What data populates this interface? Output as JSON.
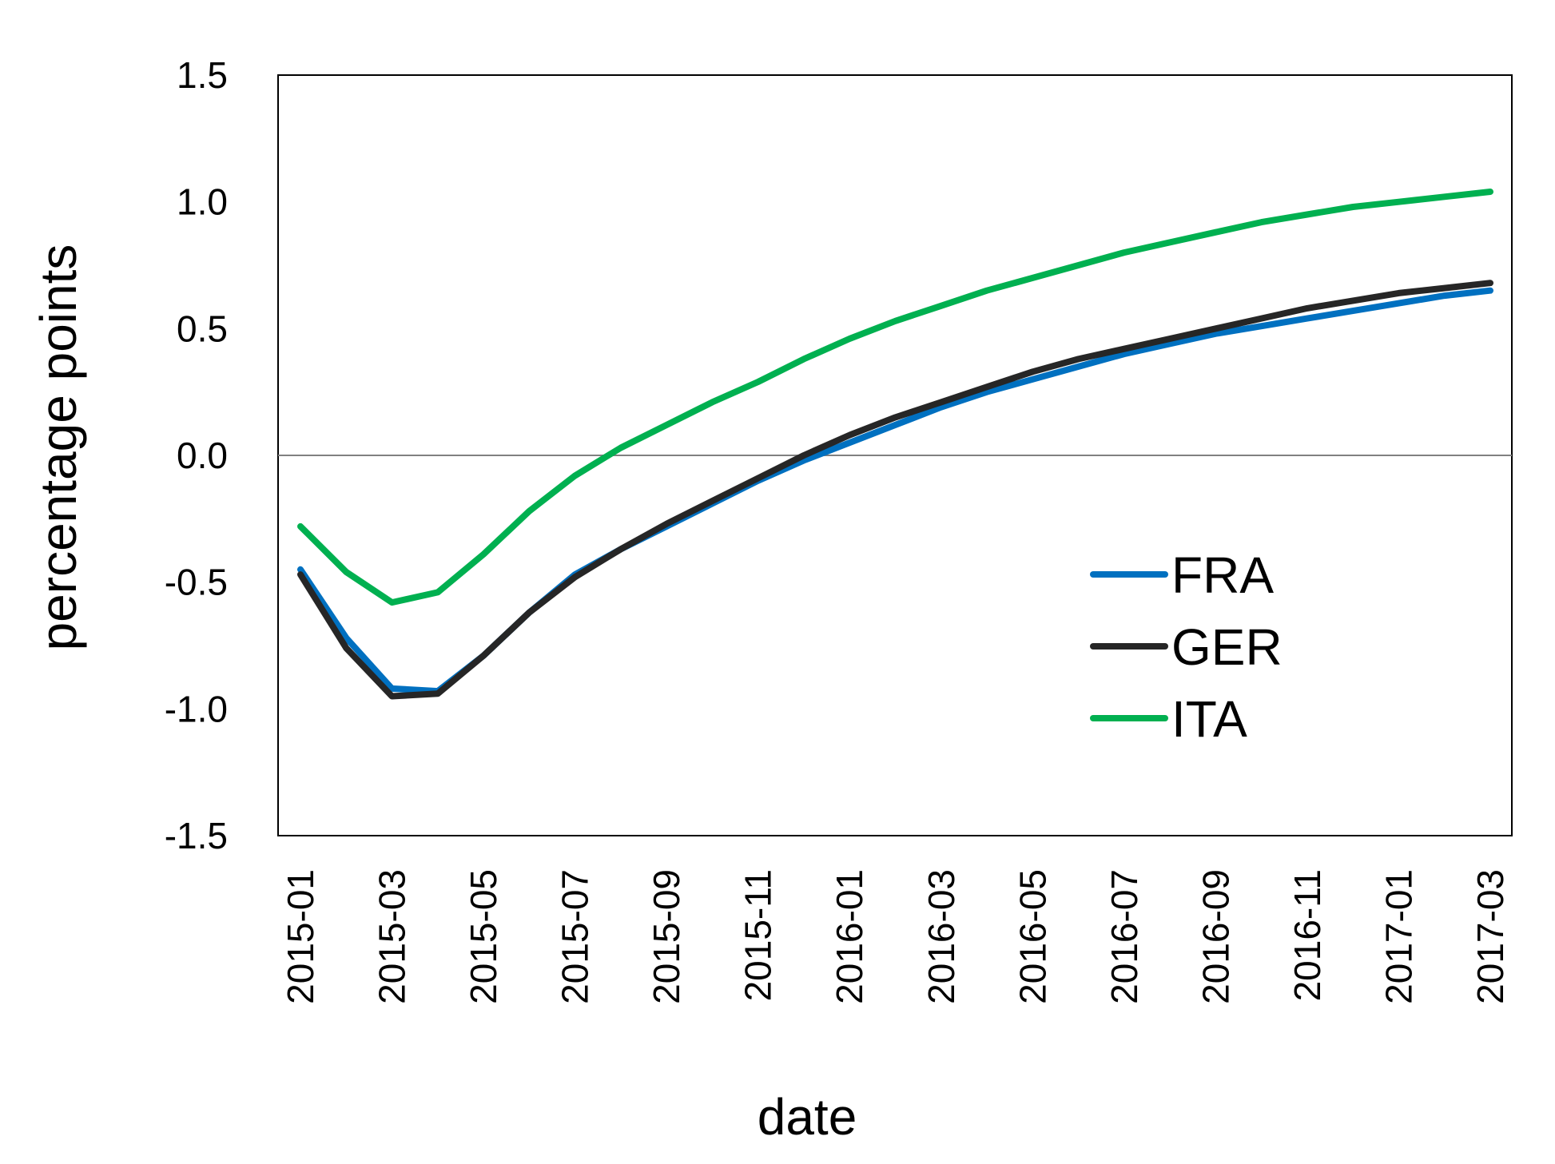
{
  "chart_data": {
    "type": "line",
    "title": "",
    "xlabel": "date",
    "ylabel": "percentage points",
    "ylim": [
      -1.5,
      1.5
    ],
    "yticks": [
      "1.5",
      "1.0",
      "0.5",
      "0.0",
      "-0.5",
      "-1.0",
      "-1.5"
    ],
    "x": [
      "2015-01",
      "2015-02",
      "2015-03",
      "2015-04",
      "2015-05",
      "2015-06",
      "2015-07",
      "2015-08",
      "2015-09",
      "2015-10",
      "2015-11",
      "2015-12",
      "2016-01",
      "2016-02",
      "2016-03",
      "2016-04",
      "2016-05",
      "2016-06",
      "2016-07",
      "2016-08",
      "2016-09",
      "2016-10",
      "2016-11",
      "2016-12",
      "2017-01",
      "2017-02",
      "2017-03"
    ],
    "xtick_labels": [
      "2015-01",
      "2015-03",
      "2015-05",
      "2015-07",
      "2015-09",
      "2015-11",
      "2016-01",
      "2016-03",
      "2016-05",
      "2016-07",
      "2016-09",
      "2016-11",
      "2017-01",
      "2017-03"
    ],
    "zero_line": true,
    "grid": false,
    "legend_position": "right-center",
    "series": [
      {
        "name": "FRA",
        "color": "#0070C0",
        "values": [
          -0.45,
          -0.72,
          -0.92,
          -0.93,
          -0.79,
          -0.62,
          -0.47,
          -0.37,
          -0.28,
          -0.19,
          -0.1,
          -0.02,
          0.05,
          0.12,
          0.19,
          0.25,
          0.3,
          0.35,
          0.4,
          0.44,
          0.48,
          0.51,
          0.54,
          0.57,
          0.6,
          0.63,
          0.65
        ]
      },
      {
        "name": "GER",
        "color": "#262626",
        "values": [
          -0.47,
          -0.76,
          -0.95,
          -0.94,
          -0.79,
          -0.62,
          -0.48,
          -0.37,
          -0.27,
          -0.18,
          -0.09,
          0.0,
          0.08,
          0.15,
          0.21,
          0.27,
          0.33,
          0.38,
          0.42,
          0.46,
          0.5,
          0.54,
          0.58,
          0.61,
          0.64,
          0.66,
          0.68
        ]
      },
      {
        "name": "ITA",
        "color": "#00B050",
        "values": [
          -0.28,
          -0.46,
          -0.58,
          -0.54,
          -0.39,
          -0.22,
          -0.08,
          0.03,
          0.12,
          0.21,
          0.29,
          0.38,
          0.46,
          0.53,
          0.59,
          0.65,
          0.7,
          0.75,
          0.8,
          0.84,
          0.88,
          0.92,
          0.95,
          0.98,
          1.0,
          1.02,
          1.04
        ]
      }
    ]
  }
}
